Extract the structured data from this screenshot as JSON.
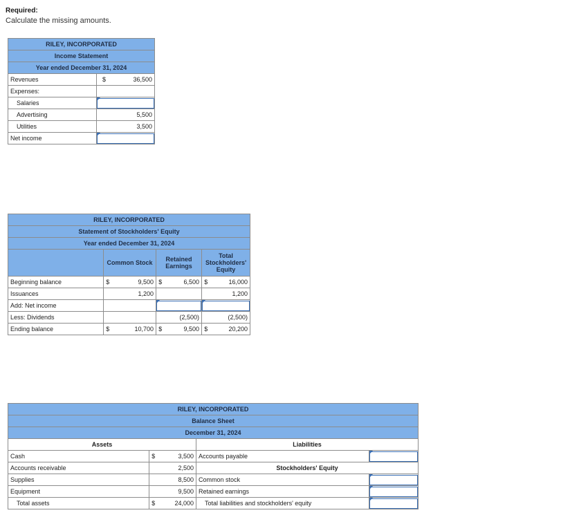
{
  "required": {
    "heading": "Required:",
    "instruction": "Calculate the missing amounts."
  },
  "income_statement": {
    "company": "RILEY, INCORPORATED",
    "title": "Income Statement",
    "period": "Year ended December 31, 2024",
    "revenues_label": "Revenues",
    "dollar": "$",
    "revenues_value": "36,500",
    "expenses_label": "Expenses:",
    "salaries_label": "Salaries",
    "advertising_label": "Advertising",
    "advertising_value": "5,500",
    "utilities_label": "Utilities",
    "utilities_value": "3,500",
    "net_income_label": "Net income"
  },
  "equity_statement": {
    "company": "RILEY, INCORPORATED",
    "title": "Statement of Stockholders' Equity",
    "period": "Year ended December 31, 2024",
    "col_common": "Common Stock",
    "col_retained": "Retained Earnings",
    "col_total": "Total Stockholders' Equity",
    "dollar": "$",
    "beginning_label": "Beginning balance",
    "beginning_common": "9,500",
    "beginning_retained": "6,500",
    "beginning_total": "16,000",
    "issuances_label": "Issuances",
    "issuances_common": "1,200",
    "issuances_total": "1,200",
    "net_income_label": "Add: Net income",
    "dividends_label": "Less: Dividends",
    "dividends_retained": "(2,500)",
    "dividends_total": "(2,500)",
    "ending_label": "Ending balance",
    "ending_common": "10,700",
    "ending_retained": "9,500",
    "ending_total": "20,200"
  },
  "balance_sheet": {
    "company": "RILEY, INCORPORATED",
    "title": "Balance Sheet",
    "date": "December 31, 2024",
    "assets_heading": "Assets",
    "liabilities_heading": "Liabilities",
    "equity_heading": "Stockholders' Equity",
    "dollar": "$",
    "cash_label": "Cash",
    "cash_value": "3,500",
    "ar_label": "Accounts receivable",
    "ar_value": "2,500",
    "supplies_label": "Supplies",
    "supplies_value": "8,500",
    "equipment_label": "Equipment",
    "equipment_value": "9,500",
    "total_assets_label": "Total assets",
    "total_assets_value": "24,000",
    "ap_label": "Accounts payable",
    "common_stock_label": "Common stock",
    "retained_label": "Retained earnings",
    "total_le_label": "Total liabilities and stockholders' equity"
  }
}
